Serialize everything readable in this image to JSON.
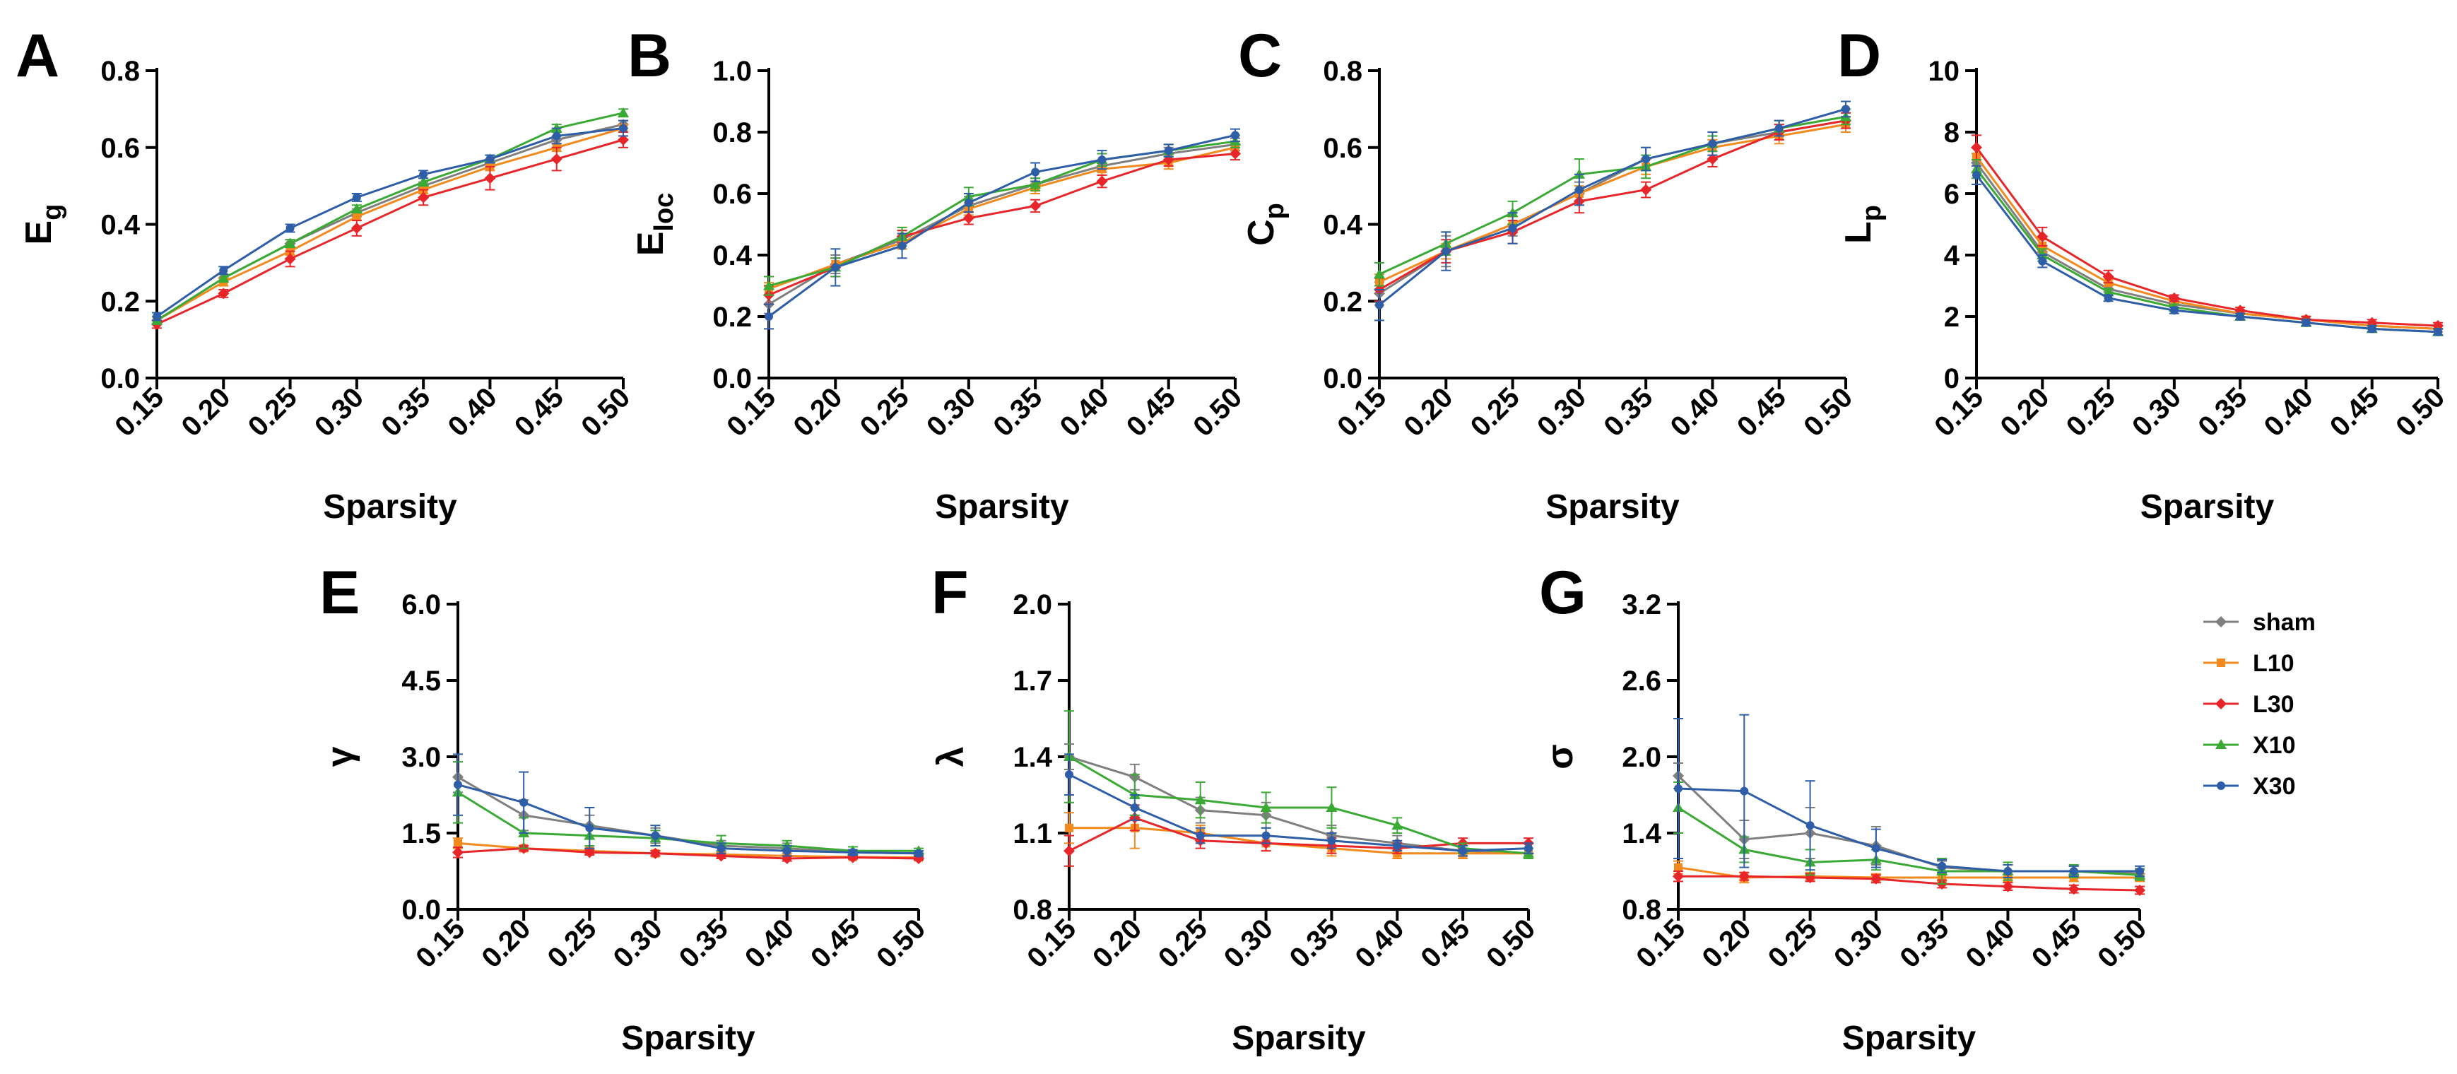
{
  "colors": {
    "sham": "#7f7f7f",
    "L10": "#f28a1e",
    "L30": "#e8262a",
    "X10": "#3aaa35",
    "X30": "#2f5ea8"
  },
  "legend": {
    "entries": [
      {
        "label": "sham",
        "marker": "diamond",
        "color": "#7f7f7f"
      },
      {
        "label": "L10",
        "marker": "square",
        "color": "#f28a1e"
      },
      {
        "label": "L30",
        "marker": "diamond",
        "color": "#e8262a"
      },
      {
        "label": "X10",
        "marker": "triangle",
        "color": "#3aaa35"
      },
      {
        "label": "X30",
        "marker": "circle",
        "color": "#2f5ea8"
      }
    ]
  },
  "chart_data": [
    {
      "panel": "A",
      "type": "line",
      "xlabel": "Sparsity",
      "ylabel": "E",
      "ylabel_sub": "g",
      "categories": [
        "0.15",
        "0.20",
        "0.25",
        "0.30",
        "0.35",
        "0.40",
        "0.45",
        "0.50"
      ],
      "ylim": [
        0,
        0.8
      ],
      "yticks": [
        "0.0",
        "0.2",
        "0.4",
        "0.6",
        "0.8"
      ],
      "series": [
        {
          "name": "sham",
          "values": [
            0.15,
            0.26,
            0.35,
            0.43,
            0.5,
            0.56,
            0.62,
            0.66
          ],
          "err": [
            0.01,
            0.01,
            0.01,
            0.01,
            0.01,
            0.01,
            0.01,
            0.01
          ]
        },
        {
          "name": "L10",
          "values": [
            0.15,
            0.25,
            0.33,
            0.42,
            0.49,
            0.55,
            0.6,
            0.65
          ],
          "err": [
            0.01,
            0.01,
            0.01,
            0.01,
            0.01,
            0.01,
            0.01,
            0.01
          ]
        },
        {
          "name": "L30",
          "values": [
            0.14,
            0.22,
            0.31,
            0.39,
            0.47,
            0.52,
            0.57,
            0.62
          ],
          "err": [
            0.01,
            0.01,
            0.02,
            0.02,
            0.02,
            0.03,
            0.03,
            0.02
          ]
        },
        {
          "name": "X10",
          "values": [
            0.15,
            0.26,
            0.35,
            0.44,
            0.51,
            0.57,
            0.65,
            0.69
          ],
          "err": [
            0.01,
            0.01,
            0.01,
            0.01,
            0.01,
            0.01,
            0.01,
            0.01
          ]
        },
        {
          "name": "X30",
          "values": [
            0.16,
            0.28,
            0.39,
            0.47,
            0.53,
            0.57,
            0.63,
            0.65
          ],
          "err": [
            0.01,
            0.01,
            0.01,
            0.01,
            0.01,
            0.01,
            0.02,
            0.02
          ]
        }
      ]
    },
    {
      "panel": "B",
      "type": "line",
      "xlabel": "Sparsity",
      "ylabel": "E",
      "ylabel_sub": "loc",
      "categories": [
        "0.15",
        "0.20",
        "0.25",
        "0.30",
        "0.35",
        "0.40",
        "0.45",
        "0.50"
      ],
      "ylim": [
        0,
        1.0
      ],
      "yticks": [
        "0.0",
        "0.2",
        "0.4",
        "0.6",
        "0.8",
        "1.0"
      ],
      "series": [
        {
          "name": "sham",
          "values": [
            0.24,
            0.37,
            0.45,
            0.56,
            0.63,
            0.69,
            0.73,
            0.76
          ],
          "err": [
            0.03,
            0.03,
            0.03,
            0.03,
            0.02,
            0.02,
            0.02,
            0.02
          ]
        },
        {
          "name": "L10",
          "values": [
            0.29,
            0.37,
            0.44,
            0.55,
            0.62,
            0.68,
            0.7,
            0.75
          ],
          "err": [
            0.02,
            0.02,
            0.02,
            0.02,
            0.02,
            0.02,
            0.02,
            0.02
          ]
        },
        {
          "name": "L30",
          "values": [
            0.27,
            0.36,
            0.46,
            0.52,
            0.56,
            0.64,
            0.71,
            0.73
          ],
          "err": [
            0.03,
            0.03,
            0.02,
            0.02,
            0.02,
            0.02,
            0.02,
            0.02
          ]
        },
        {
          "name": "X10",
          "values": [
            0.3,
            0.36,
            0.46,
            0.59,
            0.63,
            0.71,
            0.74,
            0.77
          ],
          "err": [
            0.03,
            0.03,
            0.03,
            0.03,
            0.02,
            0.02,
            0.02,
            0.02
          ]
        },
        {
          "name": "X30",
          "values": [
            0.2,
            0.36,
            0.43,
            0.57,
            0.67,
            0.71,
            0.74,
            0.79
          ],
          "err": [
            0.04,
            0.06,
            0.04,
            0.03,
            0.03,
            0.03,
            0.02,
            0.02
          ]
        }
      ]
    },
    {
      "panel": "C",
      "type": "line",
      "xlabel": "Sparsity",
      "ylabel": "C",
      "ylabel_sub": "p",
      "categories": [
        "0.15",
        "0.20",
        "0.25",
        "0.30",
        "0.35",
        "0.40",
        "0.45",
        "0.50"
      ],
      "ylim": [
        0,
        0.8
      ],
      "yticks": [
        "0.0",
        "0.2",
        "0.4",
        "0.6",
        "0.8"
      ],
      "series": [
        {
          "name": "sham",
          "values": [
            0.22,
            0.33,
            0.4,
            0.48,
            0.57,
            0.61,
            0.64,
            0.67
          ],
          "err": [
            0.03,
            0.04,
            0.03,
            0.03,
            0.03,
            0.03,
            0.02,
            0.02
          ]
        },
        {
          "name": "L10",
          "values": [
            0.25,
            0.33,
            0.4,
            0.48,
            0.55,
            0.6,
            0.63,
            0.66
          ],
          "err": [
            0.02,
            0.02,
            0.02,
            0.02,
            0.02,
            0.02,
            0.02,
            0.02
          ]
        },
        {
          "name": "L30",
          "values": [
            0.23,
            0.33,
            0.38,
            0.46,
            0.49,
            0.57,
            0.64,
            0.67
          ],
          "err": [
            0.03,
            0.03,
            0.03,
            0.03,
            0.02,
            0.02,
            0.02,
            0.02
          ]
        },
        {
          "name": "X10",
          "values": [
            0.27,
            0.35,
            0.43,
            0.53,
            0.55,
            0.61,
            0.65,
            0.68
          ],
          "err": [
            0.03,
            0.03,
            0.03,
            0.04,
            0.03,
            0.02,
            0.02,
            0.02
          ]
        },
        {
          "name": "X30",
          "values": [
            0.19,
            0.33,
            0.39,
            0.49,
            0.57,
            0.61,
            0.65,
            0.7
          ],
          "err": [
            0.04,
            0.05,
            0.04,
            0.04,
            0.03,
            0.03,
            0.02,
            0.02
          ]
        }
      ]
    },
    {
      "panel": "D",
      "type": "line",
      "xlabel": "Sparsity",
      "ylabel": "L",
      "ylabel_sub": "p",
      "categories": [
        "0.15",
        "0.20",
        "0.25",
        "0.30",
        "0.35",
        "0.40",
        "0.45",
        "0.50"
      ],
      "ylim": [
        0,
        10
      ],
      "yticks": [
        "0",
        "2",
        "4",
        "6",
        "8",
        "10"
      ],
      "series": [
        {
          "name": "sham",
          "values": [
            7.0,
            4.1,
            2.9,
            2.4,
            2.1,
            1.9,
            1.7,
            1.6
          ],
          "err": [
            0.3,
            0.2,
            0.1,
            0.1,
            0.1,
            0.1,
            0.1,
            0.1
          ]
        },
        {
          "name": "L10",
          "values": [
            7.2,
            4.3,
            3.1,
            2.5,
            2.1,
            1.9,
            1.7,
            1.6
          ],
          "err": [
            0.3,
            0.2,
            0.1,
            0.1,
            0.1,
            0.1,
            0.1,
            0.1
          ]
        },
        {
          "name": "L30",
          "values": [
            7.5,
            4.6,
            3.3,
            2.6,
            2.2,
            1.9,
            1.8,
            1.7
          ],
          "err": [
            0.4,
            0.3,
            0.2,
            0.1,
            0.1,
            0.1,
            0.1,
            0.1
          ]
        },
        {
          "name": "X10",
          "values": [
            6.8,
            4.0,
            2.8,
            2.3,
            2.0,
            1.8,
            1.6,
            1.5
          ],
          "err": [
            0.3,
            0.2,
            0.1,
            0.1,
            0.1,
            0.1,
            0.1,
            0.1
          ]
        },
        {
          "name": "X30",
          "values": [
            6.6,
            3.8,
            2.6,
            2.2,
            2.0,
            1.8,
            1.6,
            1.5
          ],
          "err": [
            0.3,
            0.2,
            0.1,
            0.1,
            0.1,
            0.1,
            0.1,
            0.1
          ]
        }
      ]
    },
    {
      "panel": "E",
      "type": "line",
      "xlabel": "Sparsity",
      "ylabel": "γ",
      "ylabel_sub": "",
      "categories": [
        "0.15",
        "0.20",
        "0.25",
        "0.30",
        "0.35",
        "0.40",
        "0.45",
        "0.50"
      ],
      "ylim": [
        0,
        6.0
      ],
      "yticks": [
        "0.0",
        "1.5",
        "3.0",
        "4.5",
        "6.0"
      ],
      "series": [
        {
          "name": "sham",
          "values": [
            2.6,
            1.85,
            1.65,
            1.45,
            1.25,
            1.2,
            1.12,
            1.1
          ],
          "err": [
            0.3,
            0.3,
            0.2,
            0.15,
            0.1,
            0.1,
            0.05,
            0.05
          ]
        },
        {
          "name": "L10",
          "values": [
            1.3,
            1.2,
            1.15,
            1.1,
            1.08,
            1.05,
            1.03,
            1.02
          ],
          "err": [
            0.1,
            0.05,
            0.05,
            0.05,
            0.05,
            0.05,
            0.03,
            0.03
          ]
        },
        {
          "name": "L30",
          "values": [
            1.12,
            1.2,
            1.12,
            1.1,
            1.05,
            1.0,
            1.02,
            1.0
          ],
          "err": [
            0.1,
            0.05,
            0.05,
            0.05,
            0.05,
            0.05,
            0.03,
            0.03
          ]
        },
        {
          "name": "X10",
          "values": [
            2.3,
            1.5,
            1.45,
            1.4,
            1.3,
            1.25,
            1.15,
            1.15
          ],
          "err": [
            0.6,
            0.3,
            0.2,
            0.15,
            0.15,
            0.1,
            0.08,
            0.05
          ]
        },
        {
          "name": "X30",
          "values": [
            2.45,
            2.1,
            1.6,
            1.45,
            1.2,
            1.15,
            1.12,
            1.1
          ],
          "err": [
            0.6,
            0.6,
            0.4,
            0.2,
            0.1,
            0.1,
            0.05,
            0.05
          ]
        }
      ]
    },
    {
      "panel": "F",
      "type": "line",
      "xlabel": "Sparsity",
      "ylabel": "λ",
      "ylabel_sub": "",
      "categories": [
        "0.15",
        "0.20",
        "0.25",
        "0.30",
        "0.35",
        "0.40",
        "0.45",
        "0.50"
      ],
      "ylim": [
        0.8,
        2.0
      ],
      "yticks": [
        "0.8",
        "1.1",
        "1.4",
        "1.7",
        "2.0"
      ],
      "series": [
        {
          "name": "sham",
          "values": [
            1.4,
            1.32,
            1.19,
            1.17,
            1.09,
            1.06,
            1.03,
            1.02
          ],
          "err": [
            0.05,
            0.05,
            0.05,
            0.05,
            0.04,
            0.03,
            0.02,
            0.02
          ]
        },
        {
          "name": "L10",
          "values": [
            1.12,
            1.12,
            1.1,
            1.06,
            1.04,
            1.02,
            1.02,
            1.02
          ],
          "err": [
            0.06,
            0.08,
            0.03,
            0.03,
            0.03,
            0.02,
            0.02,
            0.02
          ]
        },
        {
          "name": "L30",
          "values": [
            1.03,
            1.16,
            1.07,
            1.06,
            1.05,
            1.04,
            1.06,
            1.06
          ],
          "err": [
            0.06,
            0.05,
            0.03,
            0.03,
            0.03,
            0.02,
            0.02,
            0.02
          ]
        },
        {
          "name": "X10",
          "values": [
            1.4,
            1.25,
            1.23,
            1.2,
            1.2,
            1.13,
            1.04,
            1.02
          ],
          "err": [
            0.18,
            0.08,
            0.07,
            0.06,
            0.08,
            0.03,
            0.02,
            0.02
          ]
        },
        {
          "name": "X30",
          "values": [
            1.33,
            1.2,
            1.09,
            1.09,
            1.07,
            1.05,
            1.03,
            1.04
          ],
          "err": [
            0.08,
            0.05,
            0.03,
            0.03,
            0.03,
            0.02,
            0.02,
            0.02
          ]
        }
      ]
    },
    {
      "panel": "G",
      "type": "line",
      "xlabel": "Sparsity",
      "ylabel": "σ",
      "ylabel_sub": "",
      "categories": [
        "0.15",
        "0.20",
        "0.25",
        "0.30",
        "0.35",
        "0.40",
        "0.45",
        "0.50"
      ],
      "ylim": [
        0.8,
        3.2
      ],
      "yticks": [
        "0.8",
        "1.4",
        "2.0",
        "2.6",
        "3.2"
      ],
      "series": [
        {
          "name": "sham",
          "values": [
            1.85,
            1.35,
            1.4,
            1.3,
            1.13,
            1.1,
            1.1,
            1.08
          ],
          "err": [
            0.1,
            0.15,
            0.2,
            0.15,
            0.05,
            0.05,
            0.04,
            0.04
          ]
        },
        {
          "name": "L10",
          "values": [
            1.13,
            1.05,
            1.06,
            1.05,
            1.05,
            1.05,
            1.05,
            1.05
          ],
          "err": [
            0.05,
            0.04,
            0.03,
            0.03,
            0.03,
            0.03,
            0.03,
            0.03
          ]
        },
        {
          "name": "L30",
          "values": [
            1.06,
            1.06,
            1.05,
            1.04,
            1.0,
            0.98,
            0.96,
            0.95
          ],
          "err": [
            0.04,
            0.03,
            0.03,
            0.03,
            0.03,
            0.03,
            0.03,
            0.03
          ]
        },
        {
          "name": "X10",
          "values": [
            1.6,
            1.27,
            1.17,
            1.19,
            1.1,
            1.1,
            1.1,
            1.07
          ],
          "err": [
            0.2,
            0.1,
            0.1,
            0.08,
            0.1,
            0.07,
            0.05,
            0.04
          ]
        },
        {
          "name": "X30",
          "values": [
            1.75,
            1.73,
            1.46,
            1.28,
            1.14,
            1.1,
            1.1,
            1.1
          ],
          "err": [
            0.55,
            0.6,
            0.35,
            0.15,
            0.05,
            0.05,
            0.04,
            0.04
          ]
        }
      ]
    }
  ]
}
